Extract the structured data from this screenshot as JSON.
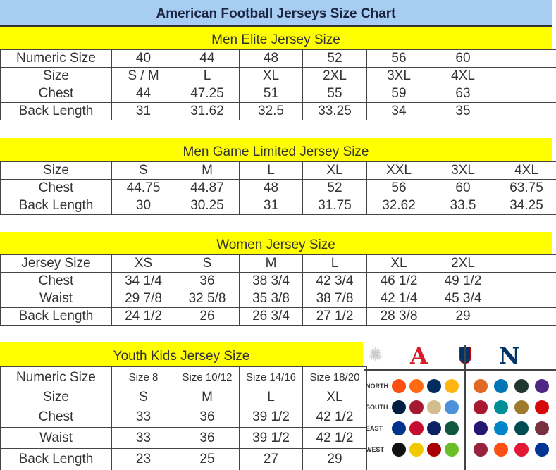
{
  "title": "American Football Jerseys Size Chart",
  "colors": {
    "title_bg": "#a8cdf2",
    "band": "#ffff00"
  },
  "sections": [
    {
      "title": "Men Elite Jersey Size",
      "rows": [
        [
          "Numeric Size",
          "40",
          "44",
          "48",
          "52",
          "56",
          "60",
          ""
        ],
        [
          "Size",
          "S / M",
          "L",
          "XL",
          "2XL",
          "3XL",
          "4XL",
          ""
        ],
        [
          "Chest",
          "44",
          "47.25",
          "51",
          "55",
          "59",
          "63",
          ""
        ],
        [
          "Back Length",
          "31",
          "31.62",
          "32.5",
          "33.25",
          "34",
          "35",
          ""
        ]
      ]
    },
    {
      "title": "Men Game Limited Jersey Size",
      "rows": [
        [
          "Size",
          "S",
          "M",
          "L",
          "XL",
          "XXL",
          "3XL",
          "4XL"
        ],
        [
          "Chest",
          "44.75",
          "44.87",
          "48",
          "52",
          "56",
          "60",
          "63.75"
        ],
        [
          "Back Length",
          "30",
          "30.25",
          "31",
          "31.75",
          "32.62",
          "33.5",
          "34.25"
        ]
      ]
    },
    {
      "title": "Women Jersey Size",
      "rows": [
        [
          "Jersey Size",
          "XS",
          "S",
          "M",
          "L",
          "XL",
          "2XL",
          ""
        ],
        [
          "Chest",
          "34 1/4",
          "36",
          "38 3/4",
          "42 3/4",
          "46 1/2",
          "49 1/2",
          ""
        ],
        [
          "Waist",
          "29 7/8",
          "32 5/8",
          "35 3/8",
          "38 7/8",
          "42 1/4",
          "45 3/4",
          ""
        ],
        [
          "Back Length",
          "24 1/2",
          "26",
          "26 3/4",
          "27 1/2",
          "28 3/8",
          "29",
          ""
        ]
      ]
    },
    {
      "title": "Youth Kids Jersey Size",
      "rows": [
        [
          "Numeric Size",
          "Size 8",
          "Size 10/12",
          "Size 14/16",
          "Size 18/20"
        ],
        [
          "Size",
          "S",
          "M",
          "L",
          "XL"
        ],
        [
          "Chest",
          "33",
          "36",
          "39 1/2",
          "42 1/2"
        ],
        [
          "Waist",
          "33",
          "36",
          "39 1/2",
          "42 1/2"
        ],
        [
          "Back Length",
          "23",
          "25",
          "27",
          "29"
        ]
      ]
    }
  ],
  "logos": {
    "conferences": {
      "afc": "A",
      "nfc": "N"
    },
    "divisions": [
      "NORTH",
      "SOUTH",
      "EAST",
      "WEST"
    ],
    "afc_colors": [
      [
        "#fb4f14",
        "#ff6a13",
        "#002c5f",
        "#ffb612"
      ],
      [
        "#041e42",
        "#a71930",
        "#d3bc8d",
        "#4b92db"
      ],
      [
        "#00338d",
        "#c60c30",
        "#0b2265",
        "#125740"
      ],
      [
        "#111111",
        "#f2c800",
        "#aa0000",
        "#69be28"
      ]
    ],
    "nfc_colors": [
      [
        "#e06a24",
        "#0076b6",
        "#203731",
        "#4f2683"
      ],
      [
        "#a71930",
        "#008e97",
        "#9f792c",
        "#d50a0a"
      ],
      [
        "#241773",
        "#0085ca",
        "#004c54",
        "#773141"
      ],
      [
        "#97233f",
        "#fb4f14",
        "#e31837",
        "#003594"
      ]
    ]
  }
}
